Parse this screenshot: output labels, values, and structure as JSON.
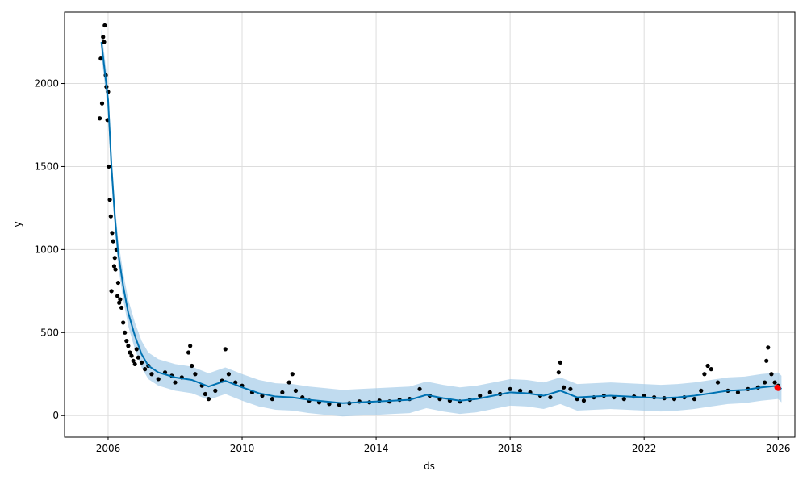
{
  "chart_data": {
    "type": "scatter",
    "xlabel": "ds",
    "ylabel": "y",
    "xlim": [
      2004.7,
      2026.5
    ],
    "ylim": [
      -130,
      2430
    ],
    "grid": true,
    "x_ticks": [
      2006,
      2010,
      2014,
      2018,
      2022,
      2026
    ],
    "x_tick_labels": [
      "2006",
      "2010",
      "2014",
      "2018",
      "2022",
      "2026"
    ],
    "y_ticks": [
      0,
      500,
      1000,
      1500,
      2000
    ],
    "y_tick_labels": [
      "0",
      "500",
      "1000",
      "1500",
      "2000"
    ],
    "colors": {
      "observed": "#000000",
      "forecast_line": "#0072B2",
      "uncertainty_band": "#9ec7e6",
      "latest_point": "#ff0000",
      "grid": "#dddddd"
    },
    "series": [
      {
        "kind": "forecast",
        "style": "line",
        "x": [
          2005.8,
          2006.0,
          2006.1,
          2006.2,
          2006.3,
          2006.45,
          2006.6,
          2006.8,
          2007.0,
          2007.2,
          2007.5,
          2008.0,
          2008.5,
          2009.0,
          2009.5,
          2010.0,
          2010.5,
          2011.0,
          2011.5,
          2012.0,
          2012.5,
          2013.0,
          2013.5,
          2014.0,
          2014.5,
          2015.0,
          2015.5,
          2016.0,
          2016.5,
          2017.0,
          2017.5,
          2018.0,
          2018.5,
          2019.0,
          2019.5,
          2020.0,
          2020.5,
          2021.0,
          2021.5,
          2022.0,
          2022.5,
          2023.0,
          2023.5,
          2024.0,
          2024.5,
          2025.0,
          2025.5,
          2026.0,
          2026.1
        ],
        "y": [
          2250,
          1900,
          1500,
          1200,
          980,
          780,
          620,
          480,
          370,
          300,
          260,
          230,
          215,
          175,
          210,
          170,
          135,
          115,
          110,
          95,
          85,
          75,
          80,
          85,
          90,
          95,
          125,
          105,
          90,
          100,
          120,
          140,
          135,
          120,
          150,
          110,
          115,
          120,
          115,
          110,
          105,
          110,
          120,
          135,
          150,
          155,
          170,
          180,
          160
        ]
      },
      {
        "kind": "uncertainty",
        "style": "band",
        "x": [
          2005.8,
          2006.0,
          2006.1,
          2006.2,
          2006.3,
          2006.45,
          2006.6,
          2006.8,
          2007.0,
          2007.2,
          2007.5,
          2008.0,
          2008.5,
          2009.0,
          2009.5,
          2010.0,
          2010.5,
          2011.0,
          2011.5,
          2012.0,
          2012.5,
          2013.0,
          2013.5,
          2014.0,
          2014.5,
          2015.0,
          2015.5,
          2016.0,
          2016.5,
          2017.0,
          2017.5,
          2018.0,
          2018.5,
          2019.0,
          2019.5,
          2020.0,
          2020.5,
          2021.0,
          2021.5,
          2022.0,
          2022.5,
          2023.0,
          2023.5,
          2024.0,
          2024.5,
          2025.0,
          2025.5,
          2026.0,
          2026.1
        ],
        "lower": [
          2170,
          1820,
          1420,
          1120,
          900,
          700,
          540,
          400,
          290,
          220,
          180,
          150,
          135,
          95,
          130,
          90,
          55,
          35,
          30,
          15,
          5,
          -5,
          0,
          5,
          10,
          15,
          45,
          25,
          10,
          20,
          40,
          60,
          55,
          40,
          70,
          30,
          35,
          40,
          35,
          30,
          25,
          30,
          40,
          55,
          70,
          75,
          90,
          100,
          80
        ],
        "upper": [
          2330,
          1980,
          1580,
          1280,
          1060,
          860,
          700,
          560,
          450,
          380,
          340,
          310,
          295,
          255,
          290,
          250,
          215,
          195,
          190,
          175,
          165,
          155,
          160,
          165,
          170,
          175,
          205,
          185,
          170,
          180,
          200,
          220,
          215,
          200,
          230,
          190,
          195,
          200,
          195,
          190,
          185,
          190,
          200,
          215,
          230,
          235,
          250,
          260,
          240
        ]
      },
      {
        "kind": "observed",
        "style": "points",
        "x": [
          2005.75,
          2005.78,
          2005.82,
          2005.85,
          2005.88,
          2005.9,
          2005.93,
          2005.95,
          2005.98,
          2006.0,
          2006.02,
          2006.05,
          2006.08,
          2006.1,
          2006.12,
          2006.15,
          2006.18,
          2006.2,
          2006.22,
          2006.25,
          2006.28,
          2006.3,
          2006.33,
          2006.36,
          2006.4,
          2006.45,
          2006.5,
          2006.55,
          2006.6,
          2006.65,
          2006.7,
          2006.75,
          2006.8,
          2006.85,
          2006.9,
          2007.0,
          2007.1,
          2007.2,
          2007.3,
          2007.5,
          2007.7,
          2007.9,
          2008.0,
          2008.2,
          2008.4,
          2008.45,
          2008.5,
          2008.6,
          2008.8,
          2008.9,
          2009.0,
          2009.2,
          2009.4,
          2009.5,
          2009.6,
          2009.8,
          2010.0,
          2010.3,
          2010.6,
          2010.9,
          2011.2,
          2011.4,
          2011.5,
          2011.6,
          2011.8,
          2012.0,
          2012.3,
          2012.6,
          2012.9,
          2013.2,
          2013.5,
          2013.8,
          2014.1,
          2014.4,
          2014.7,
          2015.0,
          2015.3,
          2015.6,
          2015.9,
          2016.2,
          2016.5,
          2016.8,
          2017.1,
          2017.4,
          2017.7,
          2018.0,
          2018.3,
          2018.6,
          2018.9,
          2019.2,
          2019.45,
          2019.5,
          2019.6,
          2019.8,
          2020.0,
          2020.2,
          2020.5,
          2020.8,
          2021.1,
          2021.4,
          2021.7,
          2022.0,
          2022.3,
          2022.6,
          2022.9,
          2023.2,
          2023.5,
          2023.7,
          2023.8,
          2023.9,
          2024.0,
          2024.2,
          2024.5,
          2024.8,
          2025.1,
          2025.4,
          2025.6,
          2025.65,
          2025.7,
          2025.8,
          2025.9,
          2026.0
        ],
        "y": [
          1790,
          2150,
          1880,
          2280,
          2250,
          2350,
          2050,
          1980,
          1780,
          1950,
          1500,
          1300,
          1200,
          750,
          1100,
          1050,
          900,
          950,
          880,
          1000,
          720,
          800,
          680,
          700,
          650,
          560,
          500,
          450,
          420,
          380,
          360,
          330,
          310,
          400,
          350,
          320,
          280,
          300,
          250,
          220,
          260,
          240,
          200,
          230,
          380,
          420,
          300,
          250,
          180,
          130,
          100,
          150,
          210,
          400,
          250,
          200,
          180,
          140,
          120,
          100,
          140,
          200,
          250,
          150,
          110,
          90,
          80,
          70,
          65,
          75,
          85,
          80,
          90,
          85,
          95,
          100,
          160,
          120,
          100,
          90,
          85,
          95,
          120,
          140,
          130,
          160,
          150,
          140,
          120,
          110,
          260,
          320,
          170,
          160,
          100,
          90,
          110,
          120,
          110,
          100,
          115,
          120,
          110,
          105,
          100,
          110,
          100,
          150,
          250,
          300,
          280,
          200,
          150,
          140,
          160,
          170,
          200,
          330,
          410,
          250,
          200,
          180
        ],
        "color": "#000000"
      },
      {
        "kind": "latest",
        "style": "points",
        "x": [
          2025.97,
          2026.0
        ],
        "y": [
          170,
          165
        ],
        "color": "#ff0000"
      }
    ]
  }
}
